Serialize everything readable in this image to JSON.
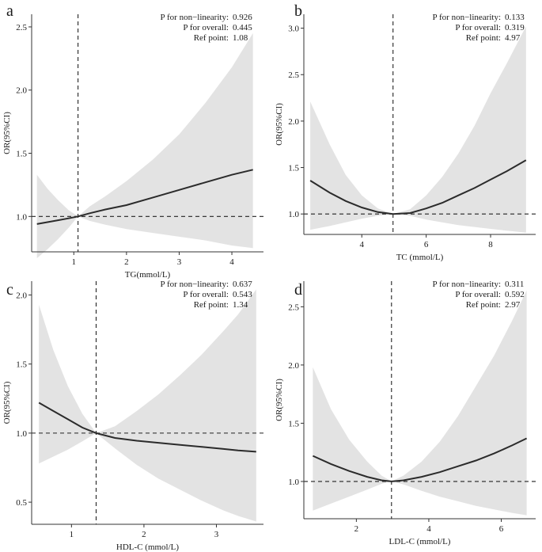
{
  "figure": {
    "background": "#ffffff",
    "band_color": "#e3e3e3",
    "line_color": "#2b2b2b"
  },
  "chart_data": [
    {
      "panel": "a",
      "type": "line",
      "xlabel": "TG(mmol/L)",
      "ylabel": "OR(95%CI)",
      "xlim": [
        0.2,
        4.6
      ],
      "ylim": [
        0.72,
        2.6
      ],
      "xticks": [
        1,
        2,
        3,
        4
      ],
      "yticks": [
        1.0,
        1.5,
        2.0,
        2.5
      ],
      "ref_x": 1.08,
      "ref_y": 1.0,
      "annotations": [
        {
          "label": "P for non−linearity:",
          "value": "0.926"
        },
        {
          "label": "P for overall:",
          "value": "0.445"
        },
        {
          "label": "Ref point:",
          "value": "1.08"
        }
      ],
      "x": [
        0.3,
        0.5,
        0.7,
        0.9,
        1.08,
        1.3,
        1.6,
        2.0,
        2.5,
        3.0,
        3.5,
        4.0,
        4.4
      ],
      "y": [
        0.94,
        0.955,
        0.97,
        0.985,
        1.0,
        1.025,
        1.055,
        1.09,
        1.15,
        1.21,
        1.27,
        1.33,
        1.37
      ],
      "lower": [
        0.67,
        0.74,
        0.82,
        0.91,
        1.0,
        0.965,
        0.935,
        0.9,
        0.87,
        0.84,
        0.81,
        0.77,
        0.75
      ],
      "upper": [
        1.33,
        1.22,
        1.13,
        1.05,
        1.0,
        1.08,
        1.16,
        1.28,
        1.45,
        1.65,
        1.9,
        2.18,
        2.45
      ]
    },
    {
      "panel": "b",
      "type": "line",
      "xlabel": "TC (mmol/L)",
      "ylabel": "OR(95%CI)",
      "xlim": [
        2.2,
        9.4
      ],
      "ylim": [
        0.78,
        3.15
      ],
      "xticks": [
        4,
        6,
        8
      ],
      "yticks": [
        1.0,
        1.5,
        2.0,
        2.5,
        3.0
      ],
      "ref_x": 4.97,
      "ref_y": 1.0,
      "annotations": [
        {
          "label": "P for non−linearity:",
          "value": "0.133"
        },
        {
          "label": "P for overall:",
          "value": "0.319"
        },
        {
          "label": "Ref point:",
          "value": "4.97"
        }
      ],
      "x": [
        2.4,
        3.0,
        3.5,
        4.0,
        4.5,
        4.97,
        5.5,
        6.0,
        6.5,
        7.0,
        7.5,
        8.0,
        8.5,
        9.1
      ],
      "y": [
        1.36,
        1.23,
        1.14,
        1.07,
        1.02,
        1.0,
        1.01,
        1.06,
        1.12,
        1.2,
        1.28,
        1.37,
        1.46,
        1.58
      ],
      "lower": [
        0.83,
        0.87,
        0.91,
        0.95,
        0.98,
        1.0,
        0.98,
        0.94,
        0.91,
        0.88,
        0.86,
        0.84,
        0.82,
        0.8
      ],
      "upper": [
        2.21,
        1.75,
        1.42,
        1.2,
        1.06,
        1.0,
        1.05,
        1.2,
        1.4,
        1.65,
        1.95,
        2.3,
        2.62,
        3.02
      ]
    },
    {
      "panel": "c",
      "type": "line",
      "xlabel": "HDL-C (mmol/L)",
      "ylabel": "OR(95%CI)",
      "xlim": [
        0.45,
        3.65
      ],
      "ylim": [
        0.34,
        2.1
      ],
      "xticks": [
        1,
        2,
        3
      ],
      "yticks": [
        0.5,
        1.0,
        1.5,
        2.0
      ],
      "ref_x": 1.34,
      "ref_y": 1.0,
      "annotations": [
        {
          "label": "P for non−linearity:",
          "value": "0.637"
        },
        {
          "label": "P for overall:",
          "value": "0.543"
        },
        {
          "label": "Ref point:",
          "value": "1.34"
        }
      ],
      "x": [
        0.55,
        0.75,
        0.95,
        1.15,
        1.34,
        1.6,
        1.9,
        2.2,
        2.5,
        2.8,
        3.1,
        3.3,
        3.55
      ],
      "y": [
        1.22,
        1.16,
        1.1,
        1.04,
        1.0,
        0.965,
        0.945,
        0.93,
        0.915,
        0.9,
        0.885,
        0.875,
        0.865
      ],
      "lower": [
        0.78,
        0.83,
        0.88,
        0.94,
        1.0,
        0.89,
        0.77,
        0.67,
        0.59,
        0.51,
        0.44,
        0.4,
        0.36
      ],
      "upper": [
        1.93,
        1.6,
        1.34,
        1.14,
        1.0,
        1.05,
        1.16,
        1.28,
        1.42,
        1.57,
        1.74,
        1.86,
        2.04
      ]
    },
    {
      "panel": "d",
      "type": "line",
      "xlabel": "LDL-C (mmol/L)",
      "ylabel": "OR(95%CI)",
      "xlim": [
        0.55,
        6.95
      ],
      "ylim": [
        0.68,
        2.72
      ],
      "xticks": [
        2,
        4,
        6
      ],
      "yticks": [
        1.0,
        1.5,
        2.0,
        2.5
      ],
      "ref_x": 2.97,
      "ref_y": 1.0,
      "annotations": [
        {
          "label": "P for non−linearity:",
          "value": "0.311"
        },
        {
          "label": "P for overall:",
          "value": "0.592"
        },
        {
          "label": "Ref point:",
          "value": "2.97"
        }
      ],
      "x": [
        0.8,
        1.3,
        1.8,
        2.3,
        2.7,
        2.97,
        3.3,
        3.8,
        4.3,
        4.8,
        5.3,
        5.8,
        6.3,
        6.7
      ],
      "y": [
        1.22,
        1.15,
        1.09,
        1.04,
        1.01,
        1.0,
        1.01,
        1.04,
        1.08,
        1.13,
        1.18,
        1.24,
        1.31,
        1.37
      ],
      "lower": [
        0.75,
        0.81,
        0.87,
        0.93,
        0.98,
        1.0,
        0.975,
        0.92,
        0.87,
        0.83,
        0.79,
        0.76,
        0.73,
        0.71
      ],
      "upper": [
        1.98,
        1.62,
        1.36,
        1.17,
        1.05,
        1.0,
        1.05,
        1.17,
        1.34,
        1.56,
        1.82,
        2.08,
        2.38,
        2.64
      ]
    }
  ]
}
